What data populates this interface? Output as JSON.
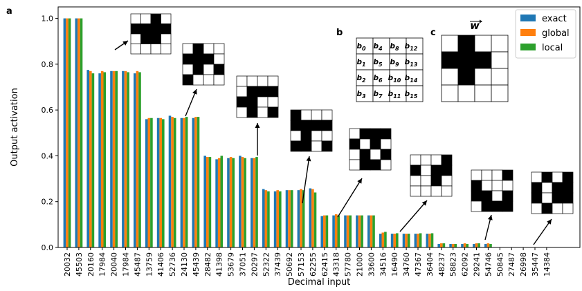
{
  "panel_labels": {
    "a": "a",
    "b": "b",
    "c": "c"
  },
  "colors": {
    "exact": "#1f77b4",
    "global": "#ff7f0e",
    "local": "#2ca02c"
  },
  "chart_data": {
    "type": "bar",
    "title": "",
    "xlabel": "Decimal input",
    "ylabel": "Output activation",
    "ylim": [
      0,
      1.05
    ],
    "yticks": [
      "0.0",
      "0.2",
      "0.4",
      "0.6",
      "0.8",
      "1.0"
    ],
    "legend_position": "top-right",
    "categories": [
      "20032",
      "45503",
      "20160",
      "17984",
      "20040",
      "17984",
      "45487",
      "13759",
      "41406",
      "52736",
      "24130",
      "45439",
      "28482",
      "41398",
      "53679",
      "37051",
      "20297",
      "52322",
      "37439",
      "50692",
      "57153",
      "62255",
      "62415",
      "43318",
      "57780",
      "21000",
      "33600",
      "34516",
      "16490",
      "34760",
      "47367",
      "36404",
      "48237",
      "58823",
      "62092",
      "29241",
      "54746",
      "50845",
      "27487",
      "26998",
      "35447",
      "14384"
    ],
    "series": [
      {
        "name": "exact",
        "values": [
          1.0,
          1.0,
          0.775,
          0.76,
          0.77,
          0.77,
          0.76,
          0.56,
          0.565,
          0.575,
          0.565,
          0.565,
          0.4,
          0.385,
          0.39,
          0.4,
          0.39,
          0.255,
          0.245,
          0.25,
          0.25,
          0.258,
          0.137,
          0.14,
          0.14,
          0.14,
          0.14,
          0.06,
          0.06,
          0.06,
          0.06,
          0.06,
          0.015,
          0.015,
          0.015,
          0.015,
          0.015,
          0.0,
          0.0,
          0.0,
          0.0,
          0.0
        ]
      },
      {
        "name": "global",
        "values": [
          1.0,
          1.0,
          0.77,
          0.77,
          0.77,
          0.77,
          0.77,
          0.565,
          0.565,
          0.57,
          0.565,
          0.57,
          0.395,
          0.39,
          0.395,
          0.395,
          0.39,
          0.25,
          0.25,
          0.25,
          0.255,
          0.255,
          0.14,
          0.145,
          0.14,
          0.14,
          0.14,
          0.065,
          0.06,
          0.06,
          0.06,
          0.06,
          0.018,
          0.015,
          0.018,
          0.018,
          0.018,
          0.0,
          0.0,
          0.0,
          0.0,
          0.0
        ]
      },
      {
        "name": "local",
        "values": [
          1.0,
          1.0,
          0.76,
          0.765,
          0.77,
          0.765,
          0.765,
          0.565,
          0.56,
          0.565,
          0.57,
          0.57,
          0.395,
          0.4,
          0.39,
          0.39,
          0.395,
          0.245,
          0.245,
          0.25,
          0.25,
          0.24,
          0.14,
          0.14,
          0.14,
          0.14,
          0.14,
          0.068,
          0.062,
          0.06,
          0.062,
          0.062,
          0.018,
          0.015,
          0.015,
          0.018,
          0.015,
          0.0,
          0.0,
          0.0,
          0.0,
          0.0
        ]
      }
    ]
  },
  "insets": {
    "patterns": [
      {
        "name": "pattern-inset-1",
        "cells": [
          [
            0,
            0,
            1,
            0
          ],
          [
            1,
            1,
            1,
            1
          ],
          [
            0,
            1,
            1,
            0
          ],
          [
            0,
            0,
            0,
            0
          ]
        ]
      },
      {
        "name": "pattern-inset-2",
        "cells": [
          [
            0,
            1,
            0,
            0
          ],
          [
            1,
            1,
            1,
            0
          ],
          [
            0,
            1,
            0,
            1
          ],
          [
            1,
            0,
            0,
            0
          ]
        ]
      },
      {
        "name": "pattern-inset-3",
        "cells": [
          [
            0,
            0,
            0,
            0
          ],
          [
            0,
            1,
            1,
            1
          ],
          [
            1,
            1,
            0,
            0
          ],
          [
            0,
            1,
            0,
            1
          ]
        ]
      },
      {
        "name": "pattern-inset-4",
        "cells": [
          [
            1,
            0,
            0,
            0
          ],
          [
            1,
            1,
            1,
            1
          ],
          [
            0,
            1,
            0,
            0
          ],
          [
            1,
            1,
            0,
            1
          ]
        ]
      },
      {
        "name": "pattern-inset-5",
        "cells": [
          [
            0,
            1,
            1,
            1
          ],
          [
            1,
            0,
            1,
            0
          ],
          [
            0,
            1,
            0,
            1
          ],
          [
            0,
            1,
            1,
            0
          ]
        ]
      },
      {
        "name": "pattern-inset-6",
        "cells": [
          [
            0,
            0,
            0,
            1
          ],
          [
            1,
            0,
            1,
            1
          ],
          [
            0,
            0,
            1,
            0
          ],
          [
            0,
            0,
            0,
            0
          ]
        ]
      },
      {
        "name": "pattern-inset-7",
        "cells": [
          [
            0,
            0,
            0,
            1
          ],
          [
            1,
            0,
            0,
            0
          ],
          [
            1,
            1,
            0,
            1
          ],
          [
            0,
            1,
            1,
            1
          ]
        ]
      },
      {
        "name": "pattern-inset-8",
        "cells": [
          [
            0,
            1,
            0,
            1
          ],
          [
            1,
            0,
            1,
            1
          ],
          [
            1,
            0,
            1,
            1
          ],
          [
            0,
            1,
            0,
            0
          ]
        ]
      }
    ],
    "weights": {
      "title": "w",
      "cells": [
        [
          0,
          1,
          0,
          0
        ],
        [
          1,
          1,
          1,
          0
        ],
        [
          0,
          1,
          0,
          0
        ],
        [
          0,
          0,
          0,
          0
        ]
      ]
    },
    "bit_table": [
      [
        "b0",
        "b4",
        "b8",
        "b12"
      ],
      [
        "b1",
        "b5",
        "b9",
        "b13"
      ],
      [
        "b2",
        "b6",
        "b10",
        "b14"
      ],
      [
        "b3",
        "b7",
        "b11",
        "b15"
      ]
    ]
  }
}
